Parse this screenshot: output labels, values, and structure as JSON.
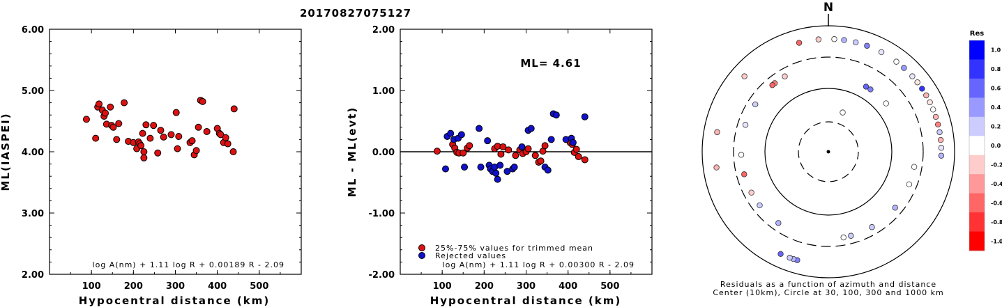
{
  "title": "20170827075127",
  "chart_data": [
    {
      "type": "scatter",
      "xlabel": "Hypocentral distance (km)",
      "ylabel": "ML(IASPEI)",
      "xlim": [
        0,
        600
      ],
      "ylim": [
        2.0,
        6.0
      ],
      "xticks": [
        "100",
        "200",
        "300",
        "400",
        "500"
      ],
      "yticks": [
        "2.00",
        "3.00",
        "4.00",
        "5.00",
        "6.00"
      ],
      "formula": "log A(nm) + 1.11 log R + 0.00189 R - 2.09",
      "points_color": "#dd1111",
      "x": [
        88,
        110,
        115,
        118,
        126,
        130,
        133,
        136,
        145,
        148,
        152,
        160,
        165,
        178,
        188,
        200,
        208,
        212,
        215,
        218,
        222,
        225,
        225,
        230,
        240,
        248,
        258,
        265,
        272,
        290,
        302,
        305,
        308,
        335,
        340,
        345,
        350,
        355,
        360,
        365,
        375,
        400,
        405,
        408,
        415,
        420,
        425,
        438,
        440
      ],
      "y": [
        4.53,
        4.22,
        4.73,
        4.78,
        4.68,
        4.58,
        4.63,
        4.45,
        4.73,
        4.43,
        4.4,
        4.2,
        4.46,
        4.8,
        4.17,
        4.15,
        4.05,
        4.16,
        4.13,
        4.1,
        4.3,
        4.0,
        3.9,
        4.44,
        4.22,
        4.43,
        3.98,
        4.35,
        4.24,
        4.28,
        4.64,
        4.05,
        4.25,
        4.15,
        4.18,
        3.95,
        4.02,
        4.4,
        4.84,
        4.82,
        4.33,
        4.38,
        4.3,
        4.28,
        4.15,
        4.23,
        4.13,
        4.0,
        4.7
      ]
    },
    {
      "type": "scatter",
      "xlabel": "Hypocentral distance (km)",
      "ylabel": "ML - ML(evt)",
      "xlim": [
        0,
        600
      ],
      "ylim": [
        -2.0,
        2.0
      ],
      "xticks": [
        "100",
        "200",
        "300",
        "400",
        "500"
      ],
      "yticks": [
        "-2.00",
        "-1.00",
        "0.00",
        "1.00",
        "2.00"
      ],
      "annotation": "ML= 4.61",
      "formula": "log A(nm) + 1.11 log R + 0.00300 R - 2.09",
      "legend": [
        "25%-75% values for trimmed mean",
        "Rejected values"
      ],
      "colors": {
        "trimmed": "#dd1111",
        "rejected": "#1111cc"
      },
      "trimmed": {
        "x": [
          88,
          125,
          130,
          135,
          140,
          150,
          160,
          165,
          225,
          232,
          240,
          245,
          258,
          275,
          285,
          292,
          300,
          305,
          322,
          330,
          335,
          340,
          345,
          405,
          410,
          415,
          420,
          425,
          440
        ],
        "y": [
          0.01,
          0.12,
          0.06,
          -0.01,
          -0.02,
          -0.02,
          0.06,
          0.1,
          0.05,
          0.09,
          -0.04,
          0.08,
          0.03,
          -0.06,
          0.03,
          -0.03,
          0.0,
          0.05,
          -0.06,
          -0.17,
          -0.15,
          0.01,
          0.1,
          0.15,
          0.12,
          -0.01,
          0.04,
          -0.08,
          -0.13
        ]
      },
      "rejected": {
        "x": [
          108,
          112,
          120,
          128,
          138,
          146,
          153,
          188,
          192,
          208,
          212,
          215,
          220,
          225,
          228,
          232,
          238,
          255,
          268,
          272,
          290,
          305,
          312,
          345,
          352,
          360,
          365,
          372,
          395,
          408,
          412,
          440
        ],
        "y": [
          -0.28,
          0.25,
          0.3,
          0.2,
          0.22,
          0.28,
          -0.25,
          0.38,
          -0.25,
          0.18,
          -0.22,
          -0.28,
          -0.32,
          -0.25,
          -0.35,
          -0.45,
          -0.22,
          -0.32,
          -0.28,
          -0.25,
          0.08,
          0.35,
          0.38,
          -0.25,
          -0.3,
          0.2,
          0.62,
          0.6,
          0.2,
          0.22,
          0.15,
          0.57
        ]
      }
    }
  ],
  "polar": {
    "north_label": "N",
    "caption_line1": "Residuals as a function of azimuth and distance",
    "caption_line2": "Center (10km), Circle at 30, 100, 300 and 1000 km",
    "points": [
      {
        "az": 345,
        "d": "outer",
        "r": -0.6
      },
      {
        "az": 355,
        "d": "outer",
        "r": -0.2
      },
      {
        "az": 3,
        "d": "outer",
        "r": 0.0
      },
      {
        "az": 8,
        "d": "outer",
        "r": 0.3
      },
      {
        "az": 14,
        "d": "outer",
        "r": 0.2
      },
      {
        "az": 20,
        "d": "outer",
        "r": 0.5
      },
      {
        "az": 28,
        "d": "outer",
        "r": 0.1
      },
      {
        "az": 37,
        "d": "outer",
        "r": 0.0
      },
      {
        "az": 42,
        "d": "outer",
        "r": 0.4
      },
      {
        "az": 48,
        "d": "outer",
        "r": 0.1
      },
      {
        "az": 52,
        "d": "outer",
        "r": -0.1
      },
      {
        "az": 56,
        "d": "outer",
        "r": 0.8
      },
      {
        "az": 60,
        "d": "outer",
        "r": -0.3
      },
      {
        "az": 64,
        "d": "outer",
        "r": -0.1
      },
      {
        "az": 68,
        "d": "outer",
        "r": 0.0
      },
      {
        "az": 72,
        "d": "outer",
        "r": -0.3
      },
      {
        "az": 76,
        "d": "outer",
        "r": -0.5
      },
      {
        "az": 80,
        "d": "outer",
        "r": 0.2
      },
      {
        "az": 84,
        "d": "outer",
        "r": -0.3
      },
      {
        "az": 88,
        "d": "outer",
        "r": 0.1
      },
      {
        "az": 92,
        "d": "outer",
        "r": 0.3
      },
      {
        "az": 100,
        "d": "inner",
        "r": 0.0
      },
      {
        "az": 112,
        "d": "inner",
        "r": 0.0
      },
      {
        "az": 130,
        "d": "inner",
        "r": 0.3
      },
      {
        "az": 150,
        "d": "inner",
        "r": 0.2
      },
      {
        "az": 165,
        "d": "inner",
        "r": 0.2
      },
      {
        "az": 170,
        "d": "inner",
        "r": 0.0
      },
      {
        "az": 196,
        "d": "outer",
        "r": 0.5
      },
      {
        "az": 198,
        "d": "outer",
        "r": 0.3
      },
      {
        "az": 200,
        "d": "outer",
        "r": 0.2
      },
      {
        "az": 205,
        "d": "outer",
        "r": 0.6
      },
      {
        "az": 215,
        "d": "inner",
        "r": 0.3
      },
      {
        "az": 232,
        "d": "inner",
        "r": 0.2
      },
      {
        "az": 242,
        "d": "inner",
        "r": -0.2
      },
      {
        "az": 255,
        "d": "inner",
        "r": -0.6
      },
      {
        "az": 262,
        "d": "outer",
        "r": -0.3
      },
      {
        "az": 268,
        "d": "inner",
        "r": 0.0
      },
      {
        "az": 280,
        "d": "outer",
        "r": -0.3
      },
      {
        "az": 288,
        "d": "inner",
        "r": 0.1
      },
      {
        "az": 303,
        "d": "inner",
        "r": 0.2
      },
      {
        "az": 312,
        "d": "outer",
        "r": -0.2
      },
      {
        "az": 322,
        "d": "inner",
        "r": -0.5
      },
      {
        "az": 320,
        "d": "inner",
        "r": -0.6
      },
      {
        "az": 330,
        "d": "inner",
        "r": -0.2
      },
      {
        "az": 34,
        "d": "mid",
        "r": 0.5
      },
      {
        "az": 30,
        "d": "mid",
        "r": 0.6
      },
      {
        "az": 50,
        "d": "mid",
        "r": 0.0
      },
      {
        "az": 20,
        "d": "near",
        "r": 0.0
      }
    ]
  },
  "colorbar": {
    "title": "Res",
    "labels": [
      "1.0",
      "0.8",
      "0.6",
      "0.4",
      "0.2",
      "0.0",
      "-0.2",
      "-0.4",
      "-0.6",
      "-0.8",
      "-1.0"
    ]
  }
}
